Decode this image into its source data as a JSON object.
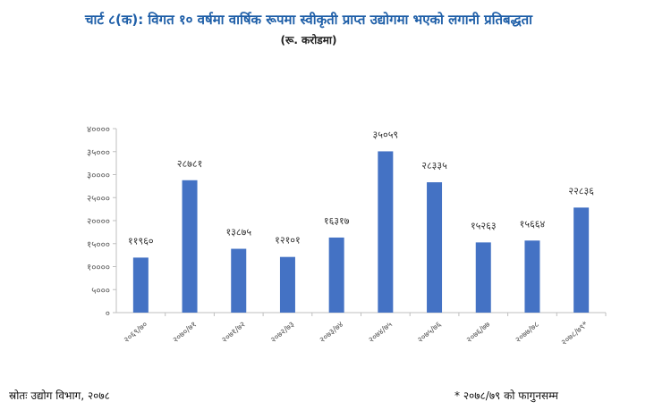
{
  "chart_data": {
    "type": "bar",
    "title": "चार्ट ८(क): विगत १० वर्षमा वार्षिक रूपमा स्वीकृती प्राप्त उद्योगमा भएको लगानी प्रतिबद्धता",
    "subtitle": "(रू. करोडमा)",
    "categories": [
      "२०६९/७०",
      "२०७०/७१",
      "२०७१/७२",
      "२०७२/७३",
      "२०७३/७४",
      "२०७४/७५",
      "२०७५/७६",
      "२०७६/७७",
      "२०७७/७८",
      "२०७८/७९*"
    ],
    "values": [
      11960,
      28781,
      13875,
      12101,
      16317,
      35059,
      28335,
      15263,
      15664,
      22836
    ],
    "value_labels": [
      "११९६०",
      "२८७८१",
      "१३८७५",
      "१२१०१",
      "१६३१७",
      "३५०५९",
      "२८३३५",
      "१५२६३",
      "१५६६४",
      "२२८३६"
    ],
    "ylim": [
      0,
      40000
    ],
    "yticks": [
      0,
      5000,
      10000,
      15000,
      20000,
      25000,
      30000,
      35000,
      40000
    ],
    "ytick_labels": [
      "०",
      "५०००",
      "१००००",
      "१५०००",
      "२००००",
      "२५०००",
      "३००००",
      "३५०००",
      "४००००"
    ],
    "xlabel": "",
    "ylabel": "",
    "grid": false,
    "bar_color": "#4472c4"
  },
  "footer": {
    "source": "स्रोतः उद्योग विभाग, २०७८",
    "note": "* २०७८/७९ को फागुनसम्म"
  }
}
